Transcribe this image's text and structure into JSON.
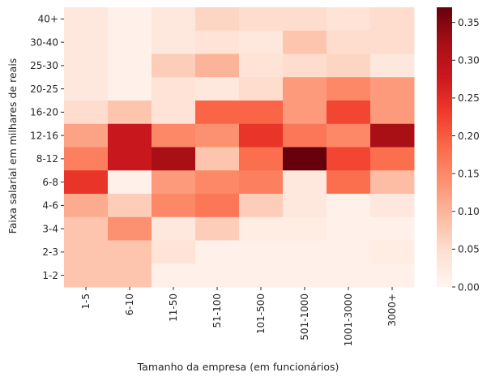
{
  "chart_data": {
    "type": "heatmap",
    "title": "",
    "xlabel": "Tamanho da empresa (em funcionários)",
    "ylabel": "Faixa salarial em milhares de reais",
    "x_categories": [
      "1-5",
      "6-10",
      "11-50",
      "51-100",
      "101-500",
      "501-1000",
      "1001-3000",
      "3000+"
    ],
    "y_categories": [
      "40+",
      "30-40",
      "25-30",
      "20-25",
      "16-20",
      "12-16",
      "8-12",
      "6-8",
      "4-6",
      "3-4",
      "2-3",
      "1-2"
    ],
    "values": [
      [
        0.03,
        0.01,
        0.03,
        0.06,
        0.05,
        0.05,
        0.04,
        0.05
      ],
      [
        0.03,
        0.01,
        0.03,
        0.04,
        0.03,
        0.08,
        0.05,
        0.05
      ],
      [
        0.03,
        0.01,
        0.07,
        0.1,
        0.04,
        0.05,
        0.06,
        0.03
      ],
      [
        0.03,
        0.01,
        0.04,
        0.03,
        0.05,
        0.13,
        0.15,
        0.13
      ],
      [
        0.05,
        0.08,
        0.04,
        0.19,
        0.19,
        0.13,
        0.22,
        0.13
      ],
      [
        0.12,
        0.28,
        0.15,
        0.14,
        0.24,
        0.17,
        0.15,
        0.32
      ],
      [
        0.16,
        0.28,
        0.32,
        0.08,
        0.18,
        0.37,
        0.22,
        0.18
      ],
      [
        0.24,
        0.01,
        0.13,
        0.15,
        0.16,
        0.03,
        0.18,
        0.09
      ],
      [
        0.11,
        0.07,
        0.15,
        0.17,
        0.07,
        0.03,
        0.01,
        0.03
      ],
      [
        0.08,
        0.14,
        0.03,
        0.07,
        0.02,
        0.02,
        0.01,
        0.01
      ],
      [
        0.08,
        0.08,
        0.04,
        0.01,
        0.01,
        0.01,
        0.01,
        0.02
      ],
      [
        0.08,
        0.08,
        0.01,
        0.01,
        0.01,
        0.01,
        0.01,
        0.01
      ]
    ],
    "colorbar": {
      "min": 0.0,
      "max": 0.37,
      "ticks": [
        "0.00",
        "0.05",
        "0.10",
        "0.15",
        "0.20",
        "0.25",
        "0.30",
        "0.35"
      ],
      "tick_values": [
        0,
        0.05,
        0.1,
        0.15,
        0.2,
        0.25,
        0.3,
        0.35
      ],
      "colormap": "Reds"
    },
    "grid": false,
    "legend": "colorbar-right"
  }
}
